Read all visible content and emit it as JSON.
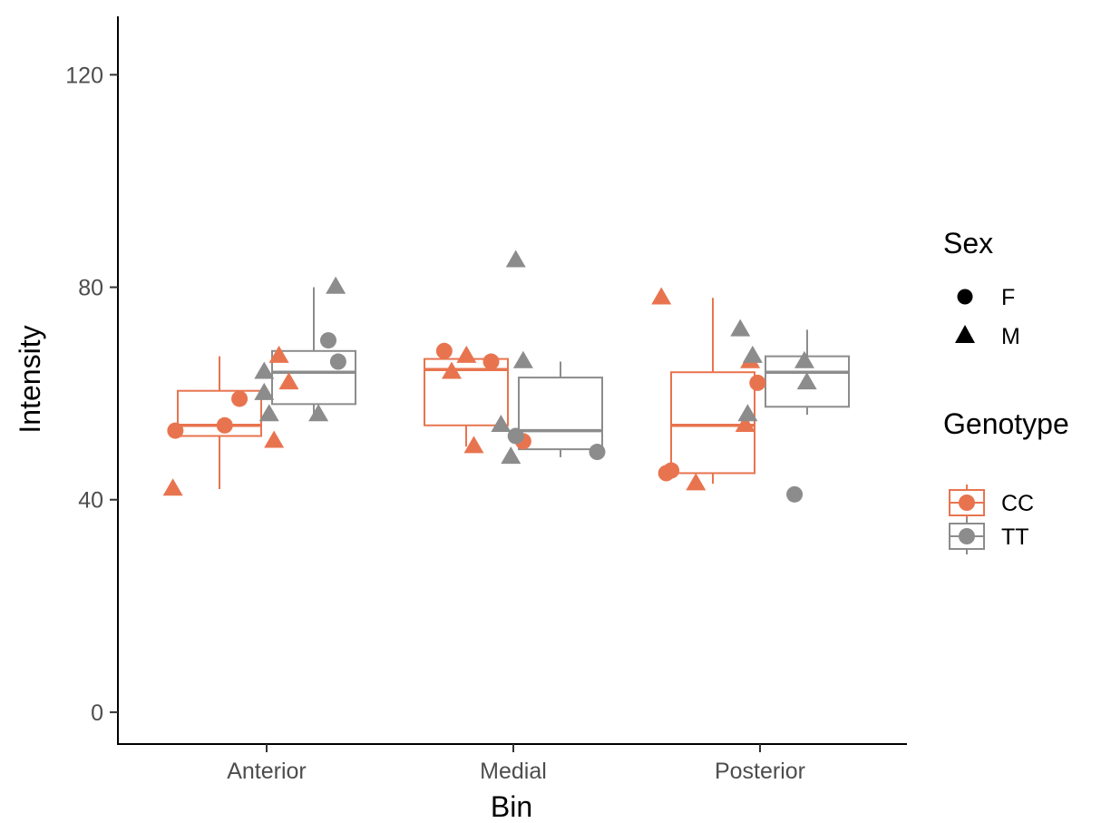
{
  "chart_data": {
    "type": "boxplot",
    "xlabel": "Bin",
    "ylabel": "Intensity",
    "categories": [
      "Anterior",
      "Medial",
      "Posterior"
    ],
    "ylim": [
      -6,
      131
    ],
    "yticks": [
      0,
      40,
      80,
      120
    ],
    "grid": false,
    "legend_placement": "right",
    "legends": [
      {
        "title": "Sex",
        "entries": [
          {
            "label": "F",
            "shape": "circle"
          },
          {
            "label": "M",
            "shape": "triangle"
          }
        ]
      },
      {
        "title": "Genotype",
        "entries": [
          {
            "label": "CC",
            "color": "#e8744f"
          },
          {
            "label": "TT",
            "color": "#8c8c8c"
          }
        ]
      }
    ],
    "series": [
      {
        "name": "CC",
        "color": "#e8744f",
        "boxes": [
          {
            "category": "Anterior",
            "whisker_low": 42,
            "q1": 52,
            "median": 54,
            "q3": 60.5,
            "whisker_high": 67
          },
          {
            "category": "Medial",
            "whisker_low": 50,
            "q1": 54,
            "median": 64.5,
            "q3": 66.5,
            "whisker_high": 68
          },
          {
            "category": "Posterior",
            "whisker_low": 43,
            "q1": 45,
            "median": 54,
            "q3": 64,
            "whisker_high": 78
          }
        ],
        "points": [
          {
            "category": "Anterior",
            "jitter": -0.37,
            "value": 53,
            "sex": "F"
          },
          {
            "category": "Anterior",
            "jitter": -0.17,
            "value": 54,
            "sex": "F"
          },
          {
            "category": "Anterior",
            "jitter": -0.11,
            "value": 59,
            "sex": "F"
          },
          {
            "category": "Anterior",
            "jitter": -0.38,
            "value": 42,
            "sex": "M"
          },
          {
            "category": "Anterior",
            "jitter": 0.03,
            "value": 51,
            "sex": "M"
          },
          {
            "category": "Anterior",
            "jitter": 0.05,
            "value": 67,
            "sex": "M"
          },
          {
            "category": "Anterior",
            "jitter": 0.09,
            "value": 62,
            "sex": "M"
          },
          {
            "category": "Medial",
            "jitter": -0.28,
            "value": 68,
            "sex": "F"
          },
          {
            "category": "Medial",
            "jitter": -0.09,
            "value": 66,
            "sex": "F"
          },
          {
            "category": "Medial",
            "jitter": 0.04,
            "value": 51,
            "sex": "F"
          },
          {
            "category": "Medial",
            "jitter": -0.25,
            "value": 64,
            "sex": "M"
          },
          {
            "category": "Medial",
            "jitter": -0.19,
            "value": 67,
            "sex": "M"
          },
          {
            "category": "Medial",
            "jitter": -0.16,
            "value": 50,
            "sex": "M"
          },
          {
            "category": "Posterior",
            "jitter": -0.38,
            "value": 45,
            "sex": "F"
          },
          {
            "category": "Posterior",
            "jitter": -0.36,
            "value": 45.5,
            "sex": "F"
          },
          {
            "category": "Posterior",
            "jitter": -0.01,
            "value": 62,
            "sex": "F"
          },
          {
            "category": "Posterior",
            "jitter": -0.4,
            "value": 78,
            "sex": "M"
          },
          {
            "category": "Posterior",
            "jitter": -0.26,
            "value": 43,
            "sex": "M"
          },
          {
            "category": "Posterior",
            "jitter": -0.06,
            "value": 54,
            "sex": "M"
          },
          {
            "category": "Posterior",
            "jitter": -0.04,
            "value": 66,
            "sex": "M"
          }
        ]
      },
      {
        "name": "TT",
        "color": "#8c8c8c",
        "boxes": [
          {
            "category": "Anterior",
            "whisker_low": 56,
            "q1": 58,
            "median": 64,
            "q3": 68,
            "whisker_high": 80
          },
          {
            "category": "Medial",
            "whisker_low": 48,
            "q1": 49.5,
            "median": 53,
            "q3": 63,
            "whisker_high": 66
          },
          {
            "category": "Posterior",
            "whisker_low": 56,
            "q1": 57.5,
            "median": 64,
            "q3": 67,
            "whisker_high": 72
          }
        ],
        "points": [
          {
            "category": "Anterior",
            "jitter": 0.25,
            "value": 70,
            "sex": "F"
          },
          {
            "category": "Anterior",
            "jitter": 0.29,
            "value": 66,
            "sex": "F"
          },
          {
            "category": "Anterior",
            "jitter": -0.01,
            "value": 64,
            "sex": "M"
          },
          {
            "category": "Anterior",
            "jitter": -0.01,
            "value": 60,
            "sex": "M"
          },
          {
            "category": "Anterior",
            "jitter": 0.01,
            "value": 56,
            "sex": "M"
          },
          {
            "category": "Anterior",
            "jitter": 0.21,
            "value": 56,
            "sex": "M"
          },
          {
            "category": "Anterior",
            "jitter": 0.28,
            "value": 80,
            "sex": "M"
          },
          {
            "category": "Medial",
            "jitter": 0.01,
            "value": 52,
            "sex": "F"
          },
          {
            "category": "Medial",
            "jitter": 0.34,
            "value": 49,
            "sex": "F"
          },
          {
            "category": "Medial",
            "jitter": -0.05,
            "value": 54,
            "sex": "M"
          },
          {
            "category": "Medial",
            "jitter": -0.01,
            "value": 48,
            "sex": "M"
          },
          {
            "category": "Medial",
            "jitter": 0.01,
            "value": 85,
            "sex": "M"
          },
          {
            "category": "Medial",
            "jitter": 0.04,
            "value": 66,
            "sex": "M"
          },
          {
            "category": "Posterior",
            "jitter": 0.14,
            "value": 41,
            "sex": "F"
          },
          {
            "category": "Posterior",
            "jitter": -0.08,
            "value": 72,
            "sex": "M"
          },
          {
            "category": "Posterior",
            "jitter": -0.03,
            "value": 67,
            "sex": "M"
          },
          {
            "category": "Posterior",
            "jitter": -0.05,
            "value": 56,
            "sex": "M"
          },
          {
            "category": "Posterior",
            "jitter": 0.18,
            "value": 66,
            "sex": "M"
          },
          {
            "category": "Posterior",
            "jitter": 0.19,
            "value": 62,
            "sex": "M"
          }
        ]
      }
    ]
  }
}
